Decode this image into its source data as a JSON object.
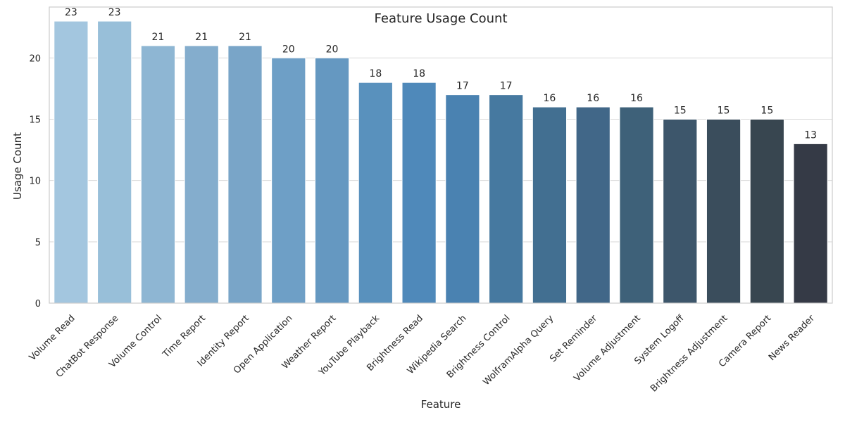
{
  "chart_data": {
    "type": "bar",
    "title": "Feature Usage Count",
    "xlabel": "Feature",
    "ylabel": "Usage Count",
    "ylim": [
      0,
      24.15
    ],
    "yticks": [
      0,
      5,
      10,
      15,
      20
    ],
    "grid": "horizontal",
    "categories": [
      "Volume Read",
      "ChatBot Response",
      "Volume Control",
      "Time Report",
      "Identity Report",
      "Open Application",
      "Weather Report",
      "YouTube Playback",
      "Brightness Read",
      "Wikipedia Search",
      "Brightness Control",
      "WolframAlpha Query",
      "Set Reminder",
      "Volume Adjustment",
      "System Logoff",
      "Brightness Adjustment",
      "Camera Report",
      "News Reader"
    ],
    "values": [
      23,
      23,
      21,
      21,
      21,
      20,
      20,
      18,
      18,
      17,
      17,
      16,
      16,
      16,
      15,
      15,
      15,
      13
    ],
    "colors": [
      "#a3c6df",
      "#98bfd9",
      "#8eb6d3",
      "#84adcd",
      "#79a5c8",
      "#6e9fc6",
      "#6598c1",
      "#5991bd",
      "#4f89ba",
      "#4a82b1",
      "#4679a0",
      "#426f91",
      "#416788",
      "#3e6179",
      "#3d566b",
      "#3a4d5c",
      "#384650",
      "#353a46"
    ]
  }
}
